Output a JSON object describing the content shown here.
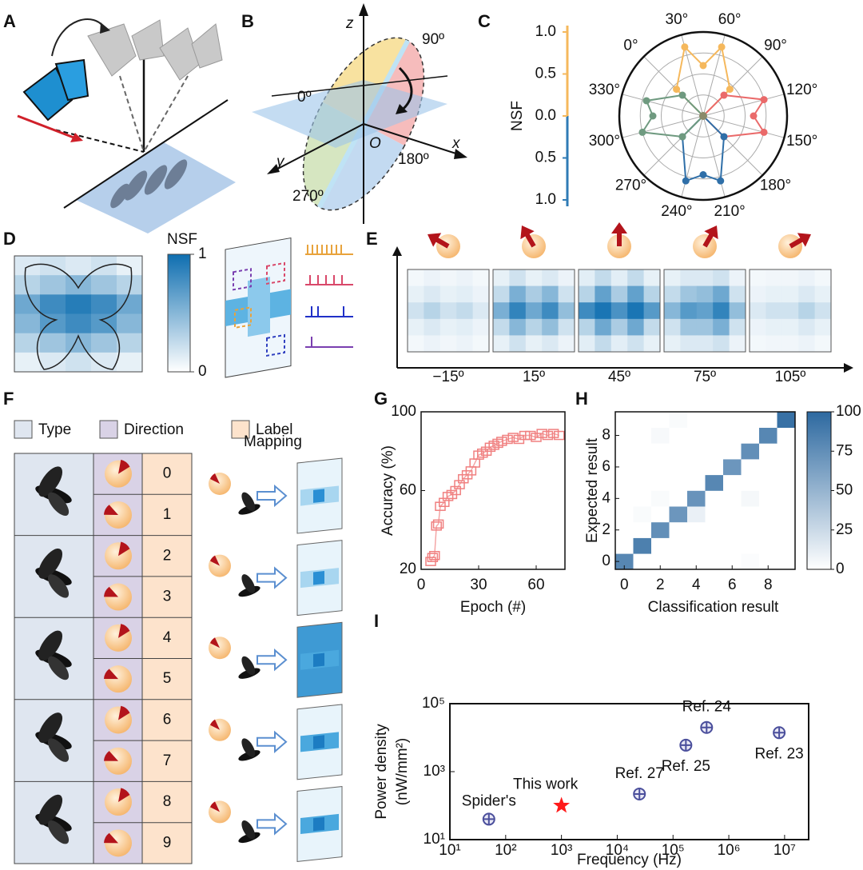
{
  "panel_labels": [
    "A",
    "B",
    "C",
    "D",
    "E",
    "F",
    "G",
    "H",
    "I"
  ],
  "panel_b": {
    "axes": [
      "z",
      "x",
      "y",
      "O"
    ],
    "angles": [
      "0º",
      "90º",
      "180º",
      "270º"
    ]
  },
  "panel_c": {
    "type": "polar",
    "nsf_label": "NSF",
    "rlim": [
      0,
      1
    ],
    "rticks": [
      0.25,
      0.5,
      0.75,
      1
    ],
    "upper_color": "#f5b85c",
    "lower_color": "#2f7bb5",
    "upper_ticks": [
      {
        "value": 0,
        "label": "0.0"
      },
      0.5,
      {
        "value": 1,
        "label": "1.0"
      }
    ],
    "lower_ticks": [
      0.5,
      {
        "value": 1,
        "label": "1.0"
      }
    ],
    "angle_ticks": [
      {
        "value": 0,
        "label": "0°"
      },
      {
        "value": 30,
        "label": "30°"
      },
      {
        "value": 60,
        "label": "60°"
      },
      {
        "value": 90,
        "label": "90°"
      },
      {
        "value": 120,
        "label": "120°"
      },
      {
        "value": 150,
        "label": "150°"
      },
      {
        "value": 180,
        "label": "180°"
      },
      {
        "value": 210,
        "label": "210°"
      },
      {
        "value": 240,
        "label": "240°"
      },
      {
        "value": 270,
        "label": "270°"
      },
      {
        "value": 300,
        "label": "300°"
      },
      {
        "value": 330,
        "label": "330°"
      }
    ],
    "series": [
      {
        "color": "#f5b85c",
        "theta": [
          0,
          30,
          45,
          60,
          90
        ],
        "values": [
          0.45,
          0.85,
          0.6,
          0.85,
          0.45
        ]
      },
      {
        "color": "#ea6a6a",
        "theta": [
          90,
          120,
          135,
          150,
          180
        ],
        "values": [
          0.35,
          0.75,
          0.6,
          0.75,
          0.35
        ]
      },
      {
        "color": "#2f6fa8",
        "theta": [
          180,
          210,
          225,
          240,
          270
        ],
        "values": [
          0.35,
          0.8,
          0.7,
          0.8,
          0.35
        ]
      },
      {
        "color": "#6f9a80",
        "theta": [
          270,
          300,
          315,
          330,
          0
        ],
        "values": [
          0.35,
          0.75,
          0.6,
          0.7,
          0.35
        ]
      }
    ]
  },
  "panel_d": {
    "nsf_label": "NSF",
    "color": "#0e6eb0",
    "cbar_lim": [
      0,
      1
    ],
    "cbar_ticks": [
      1,
      0
    ],
    "matrix": [
      [
        0.15,
        0.2,
        0.15,
        0.2,
        0.1
      ],
      [
        0.3,
        0.4,
        0.5,
        0.4,
        0.3
      ],
      [
        0.6,
        0.8,
        0.9,
        0.8,
        0.6
      ],
      [
        0.5,
        0.7,
        0.8,
        0.7,
        0.5
      ],
      [
        0.3,
        0.4,
        0.5,
        0.4,
        0.3
      ],
      [
        0.1,
        0.15,
        0.2,
        0.15,
        0.1
      ]
    ]
  },
  "panel_e": {
    "color": "#0e6eb0",
    "angles": [
      {
        "value": -15,
        "label": "−15º"
      },
      {
        "value": 15,
        "label": "15º"
      },
      {
        "value": 45,
        "label": "45º"
      },
      {
        "value": 75,
        "label": "75º"
      },
      {
        "value": 105,
        "label": "105º"
      }
    ],
    "maps": [
      [
        [
          0.05,
          0.08,
          0.06,
          0.08,
          0.05
        ],
        [
          0.1,
          0.15,
          0.1,
          0.12,
          0.08
        ],
        [
          0.2,
          0.3,
          0.2,
          0.25,
          0.15
        ],
        [
          0.1,
          0.15,
          0.1,
          0.12,
          0.08
        ],
        [
          0.05,
          0.08,
          0.06,
          0.08,
          0.05
        ]
      ],
      [
        [
          0.1,
          0.2,
          0.1,
          0.15,
          0.08
        ],
        [
          0.25,
          0.55,
          0.35,
          0.5,
          0.2
        ],
        [
          0.55,
          0.85,
          0.6,
          0.8,
          0.45
        ],
        [
          0.25,
          0.5,
          0.3,
          0.45,
          0.2
        ],
        [
          0.1,
          0.2,
          0.1,
          0.15,
          0.08
        ]
      ],
      [
        [
          0.12,
          0.25,
          0.12,
          0.25,
          0.1
        ],
        [
          0.3,
          0.65,
          0.35,
          0.65,
          0.3
        ],
        [
          0.8,
          0.95,
          0.75,
          0.95,
          0.7
        ],
        [
          0.3,
          0.6,
          0.35,
          0.6,
          0.25
        ],
        [
          0.12,
          0.25,
          0.12,
          0.2,
          0.1
        ]
      ],
      [
        [
          0.1,
          0.15,
          0.15,
          0.2,
          0.08
        ],
        [
          0.25,
          0.4,
          0.45,
          0.6,
          0.2
        ],
        [
          0.5,
          0.7,
          0.65,
          0.85,
          0.45
        ],
        [
          0.2,
          0.4,
          0.4,
          0.55,
          0.2
        ],
        [
          0.1,
          0.15,
          0.15,
          0.2,
          0.08
        ]
      ],
      [
        [
          0.05,
          0.06,
          0.06,
          0.08,
          0.05
        ],
        [
          0.08,
          0.1,
          0.1,
          0.15,
          0.1
        ],
        [
          0.15,
          0.2,
          0.2,
          0.3,
          0.2
        ],
        [
          0.08,
          0.1,
          0.1,
          0.15,
          0.1
        ],
        [
          0.05,
          0.06,
          0.06,
          0.08,
          0.05
        ]
      ]
    ]
  },
  "panel_f": {
    "legend": [
      "Type",
      "Direction",
      "Label"
    ],
    "mapping": "Mapping",
    "labels": [
      "0",
      "1",
      "2",
      "3",
      "4",
      "5",
      "6",
      "7",
      "8",
      "9"
    ]
  },
  "panel_g": {
    "type": "line",
    "xlabel": "Epoch (#)",
    "ylabel": "Accuracy (%)",
    "color": "#f08080",
    "xlim": [
      0,
      75
    ],
    "ylim": [
      20,
      100
    ],
    "xticks": [
      0,
      30,
      60
    ],
    "yticks": [
      20,
      60,
      100
    ],
    "x": [
      5,
      6,
      7,
      8,
      9,
      10,
      12,
      14,
      16,
      18,
      20,
      22,
      24,
      26,
      28,
      30,
      32,
      34,
      36,
      38,
      40,
      42,
      45,
      48,
      51,
      54,
      57,
      60,
      63,
      66,
      69,
      72
    ],
    "values": [
      24,
      26,
      27,
      42,
      43,
      52,
      54,
      57,
      58,
      60,
      63,
      66,
      68,
      70,
      74,
      78,
      79,
      80,
      82,
      83,
      84,
      85,
      86,
      87,
      86,
      88,
      88,
      87,
      89,
      88,
      89,
      88
    ]
  },
  "panel_h": {
    "type": "heatmap",
    "xlabel": "Classification result",
    "ylabel": "Expected result",
    "color": "#2d69a0",
    "xlim": [
      -0.5,
      9.5
    ],
    "ylim": [
      -0.5,
      9.5
    ],
    "xticks": [
      0,
      2,
      4,
      6,
      8
    ],
    "yticks": [
      0,
      2,
      4,
      6,
      8
    ],
    "cbar_lim": [
      0,
      100
    ],
    "cbar_ticks": [
      0,
      25,
      50,
      75,
      100
    ],
    "matrix": [
      [
        80,
        0,
        0,
        0,
        0,
        0,
        0,
        2,
        0,
        0
      ],
      [
        0,
        85,
        0,
        0,
        0,
        0,
        0,
        0,
        0,
        0
      ],
      [
        0,
        0,
        75,
        0,
        0,
        0,
        0,
        0,
        0,
        0
      ],
      [
        0,
        3,
        0,
        70,
        10,
        0,
        0,
        0,
        0,
        0
      ],
      [
        0,
        0,
        3,
        0,
        72,
        0,
        0,
        5,
        0,
        0
      ],
      [
        0,
        0,
        0,
        0,
        0,
        80,
        0,
        0,
        0,
        0
      ],
      [
        0,
        0,
        0,
        0,
        0,
        0,
        70,
        0,
        0,
        0
      ],
      [
        0,
        0,
        0,
        0,
        0,
        0,
        0,
        75,
        0,
        0
      ],
      [
        0,
        0,
        4,
        0,
        0,
        0,
        0,
        0,
        80,
        0
      ],
      [
        0,
        0,
        0,
        3,
        0,
        0,
        0,
        0,
        0,
        95
      ]
    ]
  },
  "panel_i": {
    "type": "scatter",
    "log": true,
    "xlabel": "Frequency (Hz)",
    "ylabel": [
      "Power density",
      "(nW/mm²)"
    ],
    "xlim": [
      10,
      27000000
    ],
    "ylim": [
      10,
      100000
    ],
    "xticks": [
      {
        "value": 10,
        "label": "10¹"
      },
      {
        "value": 100,
        "label": "10²"
      },
      {
        "value": 1000,
        "label": "10³"
      },
      {
        "value": 10000,
        "label": "10⁴"
      },
      {
        "value": 100000,
        "label": "10⁵"
      },
      {
        "value": 1000000,
        "label": "10⁶"
      },
      {
        "value": 10000000,
        "label": "10⁷"
      }
    ],
    "yticks": [
      {
        "value": 10,
        "label": "10¹"
      },
      {
        "value": 1000,
        "label": "10³"
      },
      {
        "value": 100000,
        "label": "10⁵"
      }
    ],
    "points": [
      {
        "name": "Spider's",
        "x": 50,
        "y": 40,
        "color": "#4b4f9c"
      },
      {
        "name": "This work",
        "x": 1000,
        "y": 100,
        "color": "#ff1a1a",
        "marker": "star"
      },
      {
        "name": "Ref. 27",
        "x": 25000,
        "y": 220,
        "color": "#4b4f9c"
      },
      {
        "name": "Ref. 25",
        "x": 170000,
        "y": 6000,
        "color": "#4b4f9c"
      },
      {
        "name": "Ref. 24",
        "x": 400000,
        "y": 20000,
        "color": "#4b4f9c"
      },
      {
        "name": "Ref. 23",
        "x": 8000000,
        "y": 14000,
        "color": "#4b4f9c"
      }
    ]
  }
}
